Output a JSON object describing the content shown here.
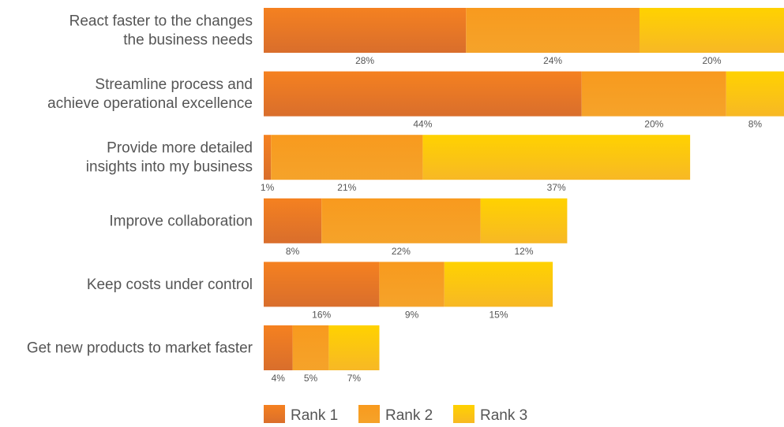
{
  "chart_data": {
    "type": "bar",
    "orientation": "horizontal",
    "stacked": true,
    "categories": [
      [
        "React faster to the changes",
        "the business needs"
      ],
      [
        "Streamline process and",
        "achieve operational excellence"
      ],
      [
        "Provide more detailed",
        "insights into my business"
      ],
      [
        "Improve collaboration"
      ],
      [
        "Keep costs under control"
      ],
      [
        "Get new products to market faster"
      ]
    ],
    "series": [
      {
        "name": "Rank 1",
        "values": [
          28,
          44,
          1,
          8,
          16,
          4
        ],
        "labels": [
          "28%",
          "44%",
          "1%",
          "8%",
          "16%",
          "4%"
        ],
        "color_top": "#F58120",
        "color_bottom": "#D96E2C"
      },
      {
        "name": "Rank 2",
        "values": [
          24,
          20,
          21,
          22,
          9,
          5
        ],
        "labels": [
          "24%",
          "20%",
          "21%",
          "22%",
          "9%",
          "5%"
        ],
        "color_top": "#F89A1E",
        "color_bottom": "#F5A32A"
      },
      {
        "name": "Rank 3",
        "values": [
          20,
          8,
          37,
          12,
          15,
          7
        ],
        "labels": [
          "20%",
          "8%",
          "37%",
          "12%",
          "15%",
          "7%"
        ],
        "color_top": "#FFD200",
        "color_bottom": "#F7B825"
      }
    ],
    "xlim": [
      0,
      72
    ],
    "grid": false,
    "legend_position": "bottom"
  }
}
